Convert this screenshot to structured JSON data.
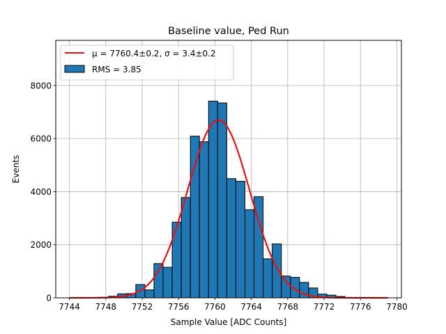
{
  "chart_data": {
    "type": "bar",
    "title": "Baseline value, Ped Run",
    "xlabel": "Sample Value [ADC Counts]",
    "ylabel": "Events",
    "xlim": [
      7742.5,
      7780.5
    ],
    "ylim": [
      0,
      9700
    ],
    "xticks": [
      7744,
      7748,
      7752,
      7756,
      7760,
      7764,
      7768,
      7772,
      7776,
      7780
    ],
    "yticks": [
      0,
      2000,
      4000,
      6000,
      8000
    ],
    "grid": true,
    "legend_position": "top-left",
    "histogram": {
      "name": "RMS = 3.85",
      "color": "#1f77b4",
      "bins": [
        {
          "x0": 7747.3,
          "x1": 7748.3,
          "value": 20
        },
        {
          "x0": 7748.3,
          "x1": 7749.3,
          "value": 60
        },
        {
          "x0": 7749.3,
          "x1": 7750.3,
          "value": 150
        },
        {
          "x0": 7750.3,
          "x1": 7751.3,
          "value": 160
        },
        {
          "x0": 7751.3,
          "x1": 7752.3,
          "value": 500
        },
        {
          "x0": 7752.3,
          "x1": 7753.3,
          "value": 300
        },
        {
          "x0": 7753.3,
          "x1": 7754.3,
          "value": 1290
        },
        {
          "x0": 7754.3,
          "x1": 7755.3,
          "value": 1150
        },
        {
          "x0": 7755.3,
          "x1": 7756.3,
          "value": 2850
        },
        {
          "x0": 7756.3,
          "x1": 7757.3,
          "value": 3780
        },
        {
          "x0": 7757.3,
          "x1": 7758.3,
          "value": 6090
        },
        {
          "x0": 7758.3,
          "x1": 7759.3,
          "value": 5880
        },
        {
          "x0": 7759.3,
          "x1": 7760.3,
          "value": 7410
        },
        {
          "x0": 7760.3,
          "x1": 7761.3,
          "value": 7340
        },
        {
          "x0": 7761.3,
          "x1": 7762.3,
          "value": 4490
        },
        {
          "x0": 7762.3,
          "x1": 7763.3,
          "value": 4390
        },
        {
          "x0": 7763.3,
          "x1": 7764.3,
          "value": 3320
        },
        {
          "x0": 7764.3,
          "x1": 7765.3,
          "value": 3810
        },
        {
          "x0": 7765.3,
          "x1": 7766.3,
          "value": 1470
        },
        {
          "x0": 7766.3,
          "x1": 7767.3,
          "value": 2030
        },
        {
          "x0": 7767.3,
          "x1": 7768.3,
          "value": 820
        },
        {
          "x0": 7768.3,
          "x1": 7769.3,
          "value": 770
        },
        {
          "x0": 7769.3,
          "x1": 7770.3,
          "value": 580
        },
        {
          "x0": 7770.3,
          "x1": 7771.3,
          "value": 370
        },
        {
          "x0": 7771.3,
          "x1": 7772.3,
          "value": 140
        },
        {
          "x0": 7772.3,
          "x1": 7773.3,
          "value": 100
        },
        {
          "x0": 7773.3,
          "x1": 7774.3,
          "value": 50
        }
      ]
    },
    "fit": {
      "name": "$\\mu = 7760.4\\pm0.2,\\, \\sigma = 3.4\\pm0.2$",
      "color": "#e81010",
      "mu": 7760.4,
      "sigma": 3.4,
      "amplitude": 6700,
      "x_range": [
        7744,
        7779
      ]
    },
    "legend": {
      "fit_label": "μ = 7760.4±0.2, σ = 3.4±0.2",
      "hist_label": "RMS = 3.85"
    }
  }
}
